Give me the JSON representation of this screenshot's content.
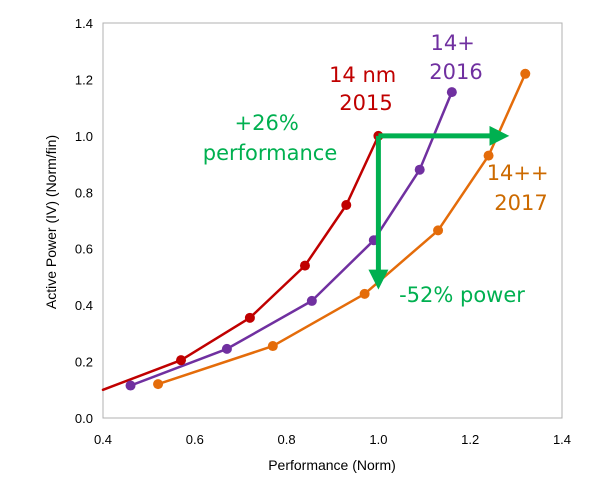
{
  "chart_data": {
    "type": "line",
    "title": "",
    "xlabel": "Performance (Norm)",
    "ylabel": "Active Power (IV) (Norm/fin)",
    "xlim": [
      0.4,
      1.4
    ],
    "ylim": [
      0.0,
      1.4
    ],
    "xticks": [
      "0.4",
      "0.6",
      "0.8",
      "1.0",
      "1.2",
      "1.4"
    ],
    "yticks": [
      "0.0",
      "0.2",
      "0.4",
      "0.6",
      "0.8",
      "1.0",
      "1.2",
      "1.4"
    ],
    "grid": false,
    "series": [
      {
        "name": "14 nm 2015",
        "color": "#c00000",
        "line_x": [
          0.4,
          0.57,
          0.72,
          0.84,
          0.93,
          1.0
        ],
        "line_y": [
          0.1,
          0.205,
          0.355,
          0.54,
          0.755,
          1.0
        ],
        "x": [
          0.57,
          0.72,
          0.84,
          0.93,
          1.0
        ],
        "y": [
          0.205,
          0.355,
          0.54,
          0.755,
          1.0
        ]
      },
      {
        "name": "14+ 2016",
        "color": "#7030a0",
        "x": [
          0.46,
          0.67,
          0.855,
          0.99,
          1.09,
          1.16
        ],
        "y": [
          0.115,
          0.245,
          0.415,
          0.63,
          0.88,
          1.155
        ]
      },
      {
        "name": "14++ 2017",
        "color": "#e46c0a",
        "x": [
          0.52,
          0.77,
          0.97,
          1.13,
          1.24,
          1.32
        ],
        "y": [
          0.12,
          0.255,
          0.44,
          0.665,
          0.93,
          1.22
        ]
      }
    ],
    "annotations": [
      {
        "lines": [
          "14 nm",
          "2015"
        ],
        "color": "#c00000"
      },
      {
        "lines": [
          "14+",
          "2016"
        ],
        "color": "#7030a0"
      },
      {
        "lines": [
          "14++",
          "2017"
        ],
        "color": "#cc6a00"
      },
      {
        "lines": [
          "+26%",
          "performance"
        ],
        "color": "#00b050"
      },
      {
        "lines": [
          "-52% power"
        ],
        "color": "#00b050"
      }
    ],
    "arrows": [
      {
        "label": "+26% performance",
        "color": "#00b050",
        "from": [
          1.0,
          1.0
        ],
        "to": [
          1.27,
          1.0
        ]
      },
      {
        "label": "-52% power",
        "color": "#00b050",
        "from": [
          1.0,
          1.0
        ],
        "to": [
          1.0,
          0.48
        ]
      }
    ]
  }
}
